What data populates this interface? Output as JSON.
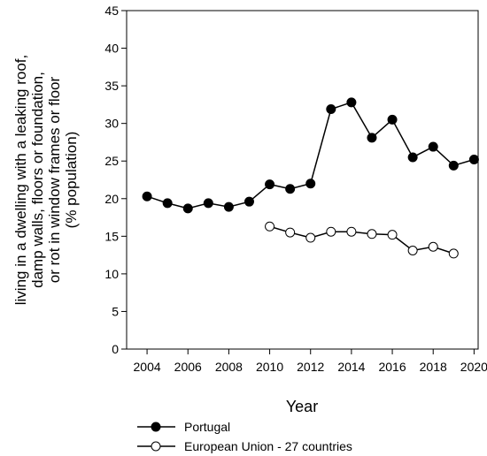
{
  "chart_data": {
    "type": "line",
    "xlabel": "Year",
    "ylabel_lines": [
      "living in a dwelling with a leaking roof,",
      "damp walls, floors or foundation,",
      "or rot in window frames or floor",
      "(% population)"
    ],
    "xlim": [
      2003,
      2020.2
    ],
    "ylim": [
      0,
      45
    ],
    "x_ticks": [
      "2004",
      "2006",
      "2008",
      "2010",
      "2012",
      "2014",
      "2016",
      "2018",
      "2020"
    ],
    "y_ticks": [
      "0",
      "5",
      "10",
      "15",
      "20",
      "25",
      "30",
      "35",
      "40",
      "45"
    ],
    "grid": false,
    "legend_position": "bottom",
    "series": [
      {
        "name": "Portugal",
        "marker": "filled-circle",
        "color": "#000000",
        "x": [
          2004,
          2005,
          2006,
          2007,
          2008,
          2009,
          2010,
          2011,
          2012,
          2013,
          2014,
          2015,
          2016,
          2017,
          2018,
          2019,
          2020
        ],
        "y": [
          20.3,
          19.4,
          18.7,
          19.4,
          18.9,
          19.6,
          21.9,
          21.3,
          22.0,
          31.9,
          32.8,
          28.1,
          30.5,
          25.5,
          26.9,
          24.4,
          25.2
        ]
      },
      {
        "name": "European Union - 27 countries",
        "marker": "open-circle",
        "color": "#000000",
        "x": [
          2010,
          2011,
          2012,
          2013,
          2014,
          2015,
          2016,
          2017,
          2018,
          2019
        ],
        "y": [
          16.3,
          15.5,
          14.8,
          15.6,
          15.6,
          15.3,
          15.2,
          13.1,
          13.6,
          12.7
        ]
      }
    ]
  }
}
